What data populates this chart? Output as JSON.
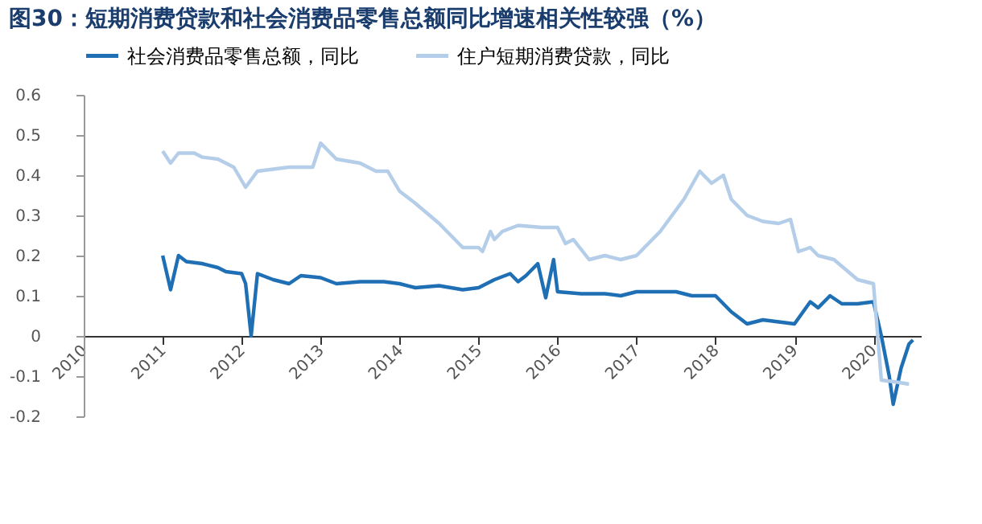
{
  "chart_data": {
    "type": "line",
    "title": "图30：短期消费贷款和社会消费品零售总额同比增速相关性较强（%）",
    "xlim": [
      2010,
      2020.6
    ],
    "xticks": [
      2010,
      2011,
      2012,
      2013,
      2014,
      2015,
      2016,
      2017,
      2018,
      2019,
      2020
    ],
    "ylim": [
      -0.2,
      0.6
    ],
    "yticks": [
      {
        "value": -0.2,
        "label": "-0.2"
      },
      {
        "value": -0.1,
        "label": "-0.1"
      },
      0,
      {
        "value": 0.1,
        "label": "0.1"
      },
      {
        "value": 0.2,
        "label": "0.2"
      },
      {
        "value": 0.3,
        "label": "0.3"
      },
      {
        "value": 0.4,
        "label": "0.4"
      },
      {
        "value": 0.5,
        "label": "0.5"
      },
      {
        "value": 0.6,
        "label": "0.6"
      }
    ],
    "grid": false,
    "legend": "top",
    "line_style": "solid",
    "marker": "none",
    "series": [
      {
        "name": "社会消费品零售总额，同比",
        "color": "#1f6fb4",
        "x": [
          2011.0,
          2011.1,
          2011.2,
          2011.3,
          2011.5,
          2011.7,
          2011.8,
          2012.0,
          2012.05,
          2012.12,
          2012.2,
          2012.4,
          2012.6,
          2012.75,
          2013.0,
          2013.2,
          2013.5,
          2013.8,
          2014.0,
          2014.2,
          2014.5,
          2014.8,
          2015.0,
          2015.2,
          2015.4,
          2015.5,
          2015.6,
          2015.75,
          2015.85,
          2015.95,
          2016.0,
          2016.3,
          2016.6,
          2016.8,
          2017.0,
          2017.5,
          2017.7,
          2018.0,
          2018.2,
          2018.4,
          2018.6,
          2019.0,
          2019.2,
          2019.3,
          2019.45,
          2019.6,
          2019.8,
          2020.0,
          2020.1,
          2020.2,
          2020.25,
          2020.35,
          2020.45,
          2020.5
        ],
        "values": [
          0.2,
          0.115,
          0.2,
          0.185,
          0.18,
          0.17,
          0.16,
          0.155,
          0.13,
          0.0,
          0.155,
          0.14,
          0.13,
          0.15,
          0.145,
          0.13,
          0.135,
          0.135,
          0.13,
          0.12,
          0.125,
          0.115,
          0.12,
          0.14,
          0.155,
          0.135,
          0.15,
          0.18,
          0.095,
          0.19,
          0.11,
          0.105,
          0.105,
          0.1,
          0.11,
          0.11,
          0.1,
          0.1,
          0.06,
          0.03,
          0.04,
          0.03,
          0.085,
          0.07,
          0.1,
          0.08,
          0.08,
          0.085,
          0.0,
          -0.1,
          -0.17,
          -0.08,
          -0.02,
          -0.01
        ]
      },
      {
        "name": "住户短期消费贷款，同比",
        "color": "#b4cde8",
        "x": [
          2011.0,
          2011.1,
          2011.2,
          2011.4,
          2011.5,
          2011.7,
          2011.9,
          2012.05,
          2012.2,
          2012.4,
          2012.6,
          2012.9,
          2013.0,
          2013.2,
          2013.5,
          2013.7,
          2013.85,
          2014.0,
          2014.2,
          2014.5,
          2014.8,
          2015.0,
          2015.05,
          2015.15,
          2015.2,
          2015.3,
          2015.5,
          2015.8,
          2016.0,
          2016.1,
          2016.2,
          2016.4,
          2016.6,
          2016.8,
          2017.0,
          2017.3,
          2017.6,
          2017.8,
          2017.95,
          2018.1,
          2018.2,
          2018.4,
          2018.6,
          2018.8,
          2018.95,
          2019.05,
          2019.2,
          2019.3,
          2019.5,
          2019.8,
          2020.0,
          2020.1,
          2020.3,
          2020.45
        ],
        "values": [
          0.46,
          0.43,
          0.455,
          0.455,
          0.445,
          0.44,
          0.42,
          0.37,
          0.41,
          0.415,
          0.42,
          0.42,
          0.48,
          0.44,
          0.43,
          0.41,
          0.41,
          0.36,
          0.33,
          0.28,
          0.22,
          0.22,
          0.21,
          0.26,
          0.24,
          0.26,
          0.275,
          0.27,
          0.27,
          0.23,
          0.24,
          0.19,
          0.2,
          0.19,
          0.2,
          0.26,
          0.34,
          0.41,
          0.38,
          0.4,
          0.34,
          0.3,
          0.285,
          0.28,
          0.29,
          0.21,
          0.22,
          0.2,
          0.19,
          0.14,
          0.13,
          -0.11,
          -0.115,
          -0.12
        ]
      }
    ]
  }
}
